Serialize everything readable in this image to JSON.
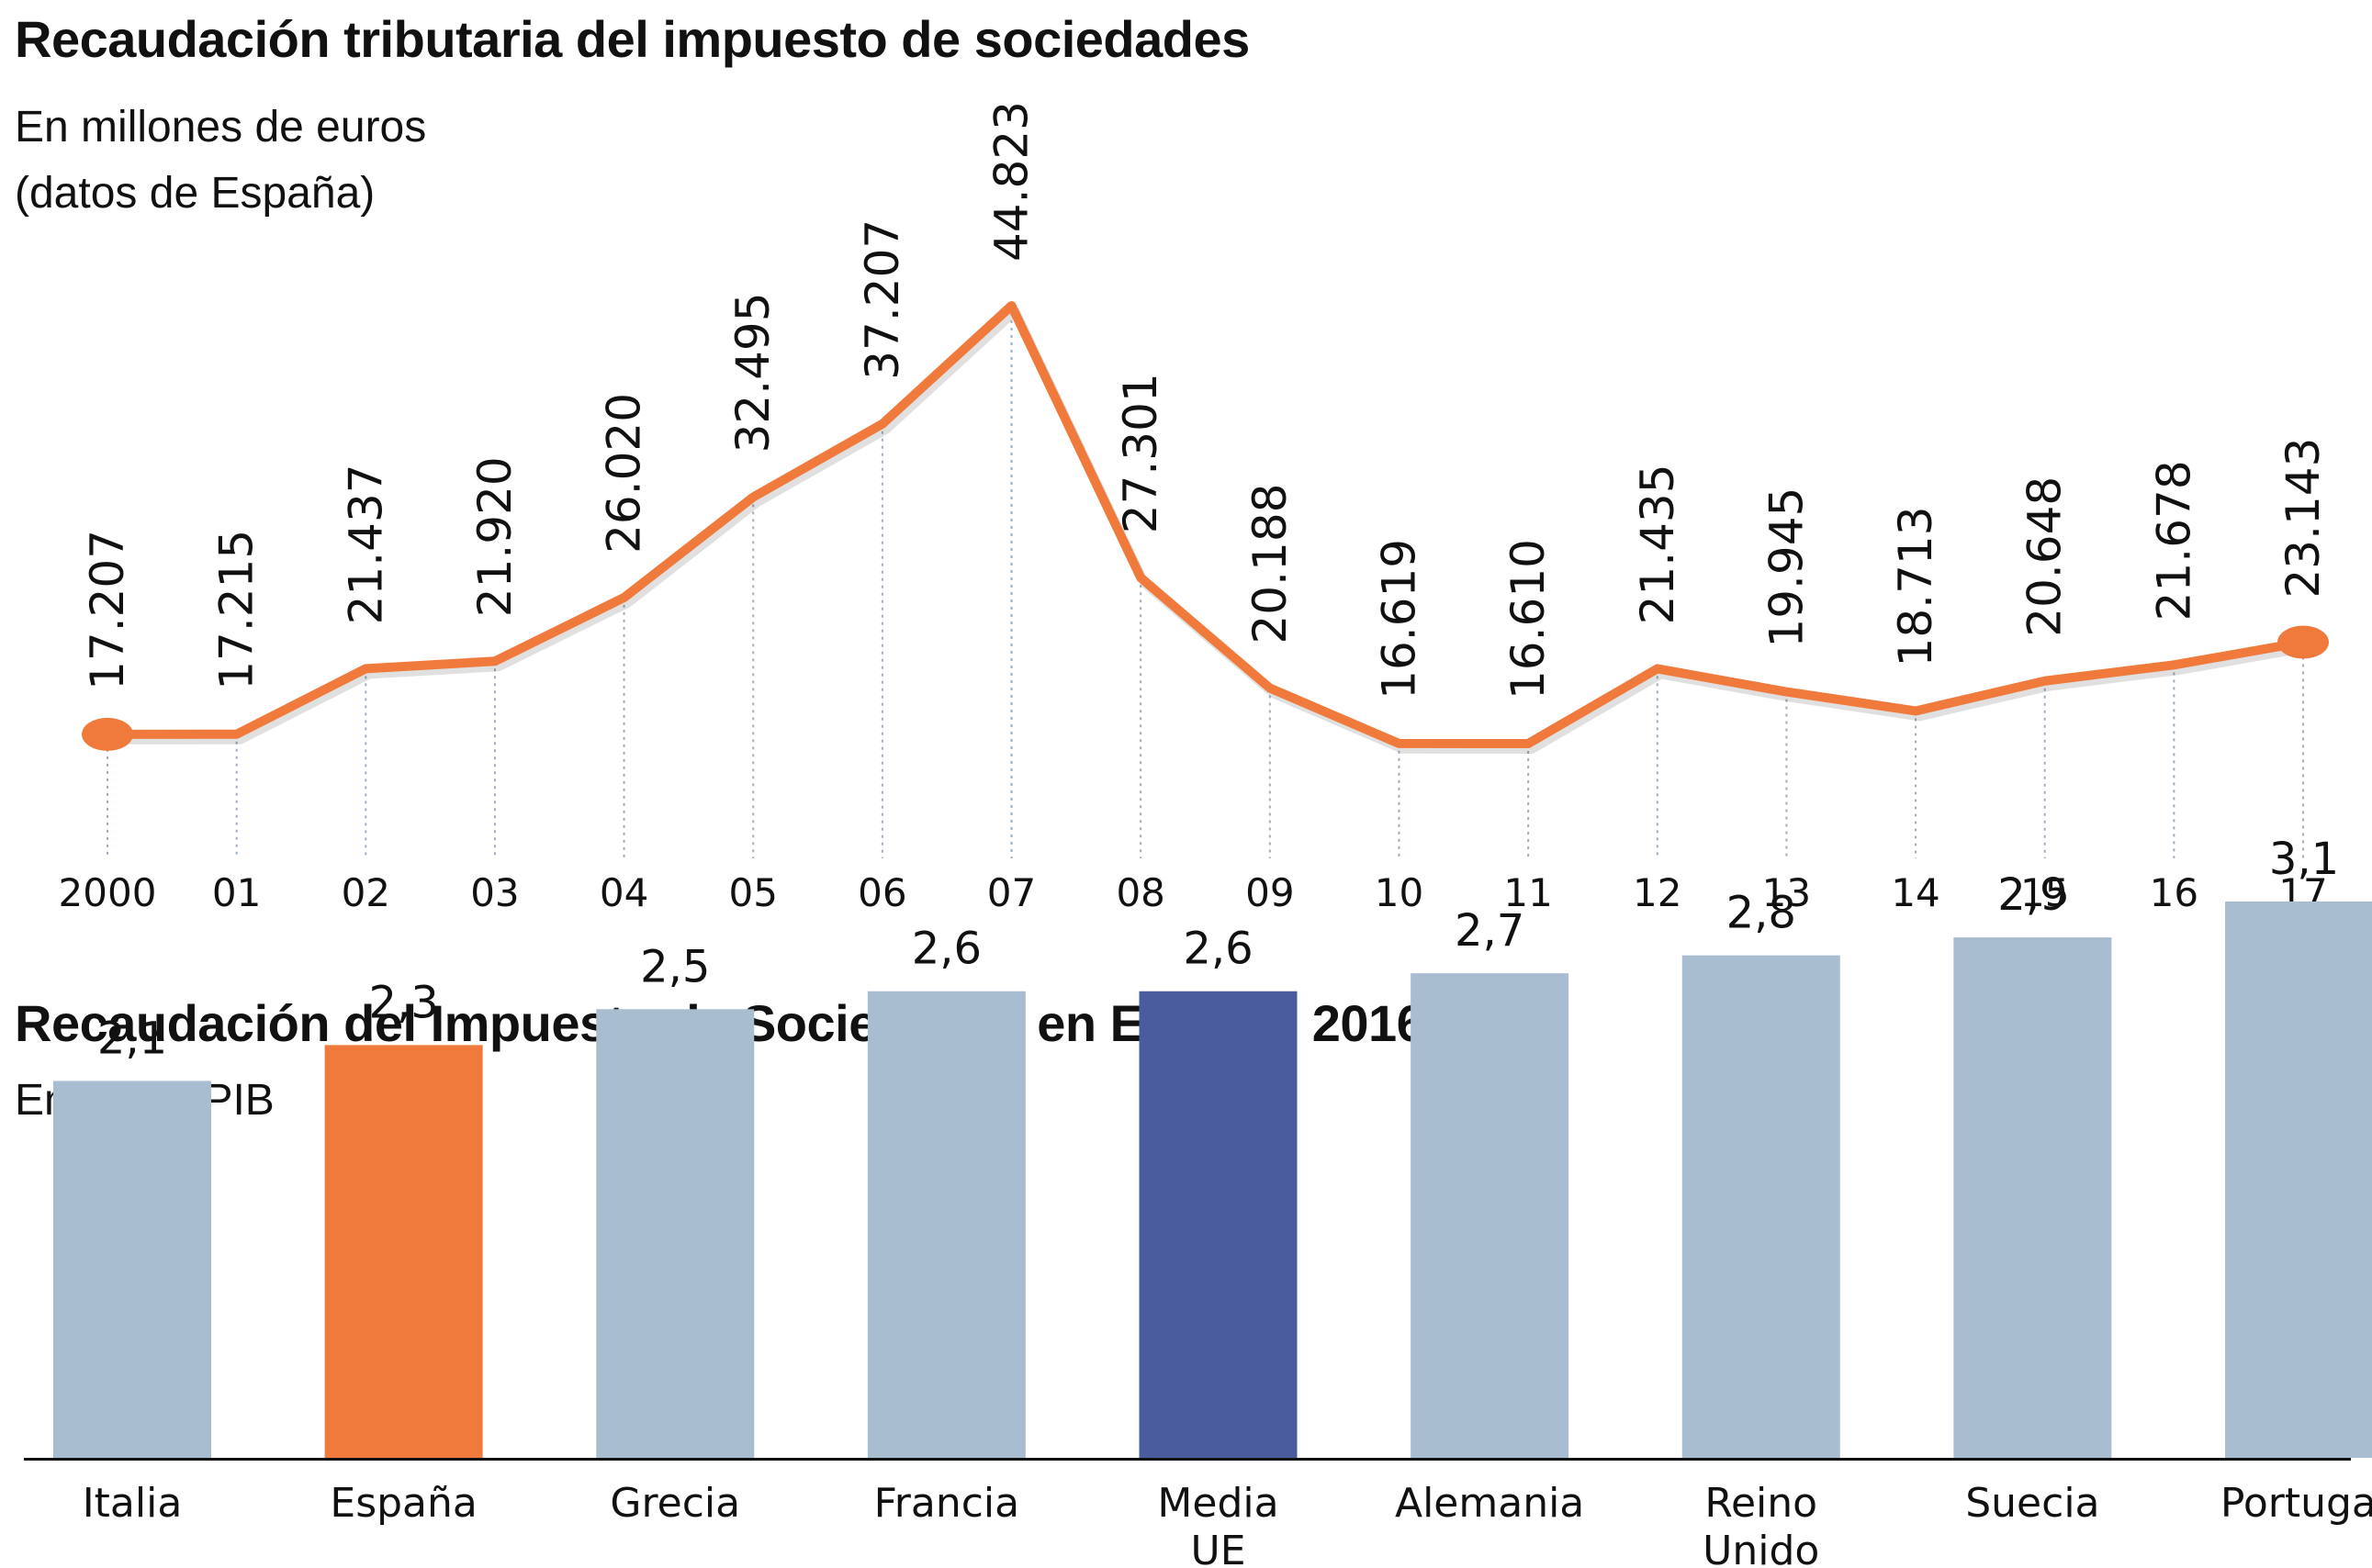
{
  "chart_data": [
    {
      "type": "line",
      "title": "Recaudación tributaria del impuesto de sociedades",
      "subtitle_lines": [
        "En millones de euros",
        "(datos de España)"
      ],
      "categories": [
        "2000",
        "01",
        "02",
        "03",
        "04",
        "05",
        "06",
        "07",
        "08",
        "09",
        "10",
        "11",
        "12",
        "13",
        "14",
        "15",
        "16",
        "17"
      ],
      "values": [
        17207,
        17215,
        21437,
        21920,
        26020,
        32495,
        37207,
        44823,
        27301,
        20188,
        16619,
        16610,
        21435,
        19945,
        18713,
        20648,
        21678,
        23143
      ],
      "value_labels": [
        "17.207",
        "17.215",
        "21.437",
        "21.920",
        "26.020",
        "32.495",
        "37.207",
        "44.823",
        "27.301",
        "20.188",
        "16.619",
        "16.610",
        "21.435",
        "19.945",
        "18.713",
        "20.648",
        "21.678",
        "23.143"
      ],
      "line_color": "#F07A3C",
      "guide_color": "#9AAFC2",
      "grid": false
    },
    {
      "type": "bar",
      "title": "Recaudación del Impuesto de Sociedades en Europa. 2016",
      "subtitle": "En % del PIB",
      "categories": [
        [
          "Italia"
        ],
        [
          "España"
        ],
        [
          "Grecia"
        ],
        [
          "Francia"
        ],
        [
          "Media",
          "UE"
        ],
        [
          "Alemania"
        ],
        [
          "Reino",
          "Unido"
        ],
        [
          "Suecia"
        ],
        [
          "Portugal"
        ]
      ],
      "values": [
        2.1,
        2.3,
        2.5,
        2.6,
        2.6,
        2.7,
        2.8,
        2.9,
        3.1
      ],
      "value_labels": [
        "2,1",
        "2,3",
        "2,5",
        "2,6",
        "2,6",
        "2,7",
        "2,8",
        "2,9",
        "3,1"
      ],
      "colors": [
        "#A9BDD1",
        "#F07A3C",
        "#A9BDD1",
        "#A9BDD1",
        "#4A5C9E",
        "#A9BDD1",
        "#A9BDD1",
        "#A9BDD1",
        "#A9BDD1"
      ],
      "grid": false
    }
  ]
}
